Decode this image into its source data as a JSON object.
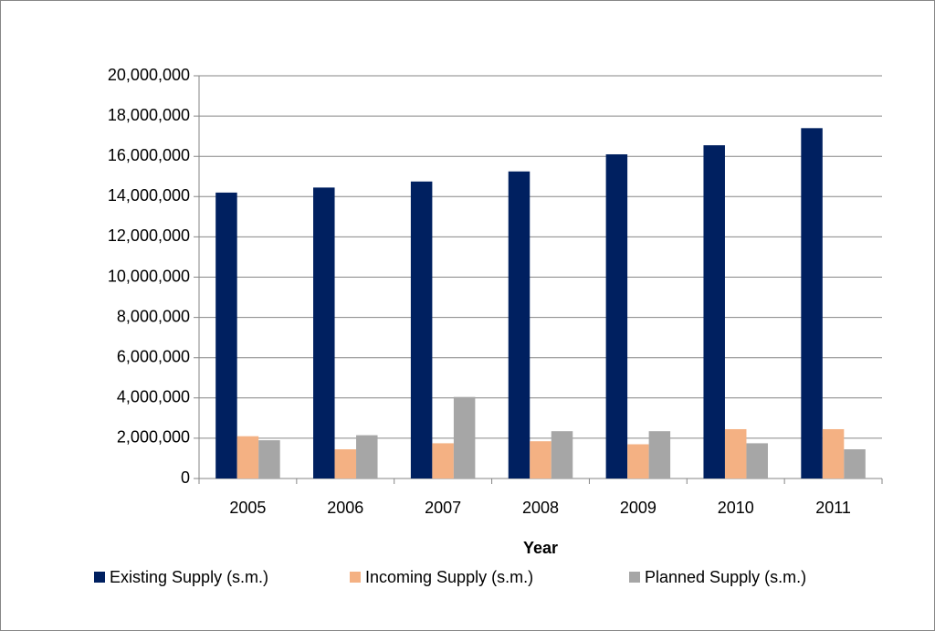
{
  "chart_data": {
    "type": "bar",
    "x_label": "Year",
    "categories": [
      "2005",
      "2006",
      "2007",
      "2008",
      "2009",
      "2010",
      "2011"
    ],
    "series": [
      {
        "name": "Existing Supply (s.m.)",
        "color": "#002060",
        "values": [
          14200000,
          14450000,
          14750000,
          15250000,
          16100000,
          16550000,
          17400000
        ]
      },
      {
        "name": "Incoming Supply (s.m.)",
        "color": "#f4b183",
        "values": [
          2100000,
          1450000,
          1750000,
          1850000,
          1700000,
          2450000,
          2450000
        ]
      },
      {
        "name": "Planned Supply (s.m.)",
        "color": "#a6a6a6",
        "values": [
          1900000,
          2150000,
          4050000,
          2350000,
          2350000,
          1750000,
          1450000
        ]
      }
    ],
    "ylim": [
      0,
      20000000
    ],
    "yticks": [
      0,
      {
        "value": 2000000,
        "label": "2,000,000"
      },
      {
        "value": 4000000,
        "label": "4,000,000"
      },
      {
        "value": 6000000,
        "label": "6,000,000"
      },
      {
        "value": 8000000,
        "label": "8,000,000"
      },
      {
        "value": 10000000,
        "label": "10,000,000"
      },
      {
        "value": 12000000,
        "label": "12,000,000"
      },
      {
        "value": 14000000,
        "label": "14,000,000"
      },
      {
        "value": 16000000,
        "label": "16,000,000"
      },
      {
        "value": 18000000,
        "label": "18,000,000"
      },
      {
        "value": 20000000,
        "label": "20,000,000"
      }
    ],
    "grid": true,
    "legend": "bottom"
  }
}
